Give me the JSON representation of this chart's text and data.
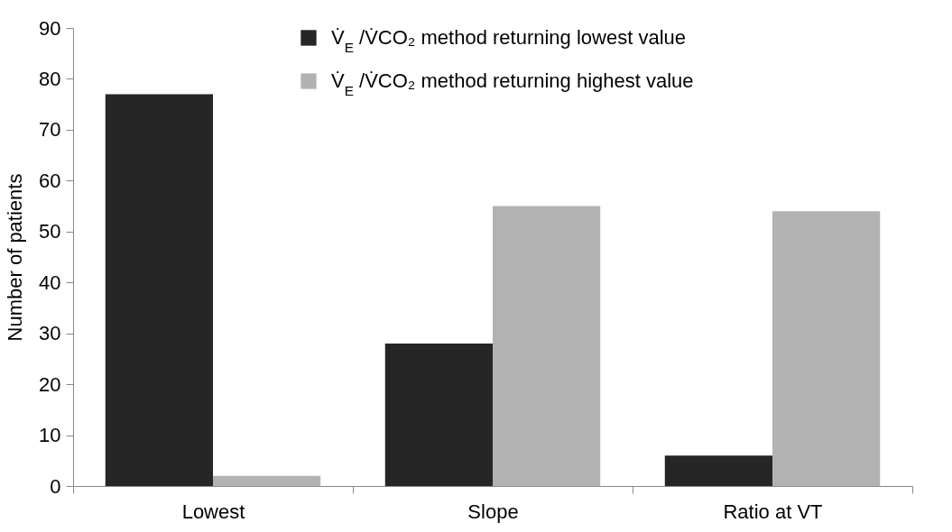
{
  "chart_data": {
    "type": "bar",
    "ylabel": "Number of patients",
    "categories": [
      "Lowest",
      "Slope",
      "Ratio at VT"
    ],
    "series": [
      {
        "name": "V̇$_{E}$ /V̇CO₂ method returning lowest value",
        "color": "#262626",
        "values": [
          77,
          28,
          6
        ]
      },
      {
        "name": "V̇$_{E}$ /V̇CO₂ method returning highest value",
        "color": "#b2b2b2",
        "values": [
          2,
          55,
          54
        ]
      }
    ],
    "ylim": [
      0,
      90
    ],
    "yticks": [
      0,
      10,
      20,
      30,
      40,
      50,
      60,
      70,
      80,
      90
    ],
    "grid": false,
    "legend": "top"
  }
}
